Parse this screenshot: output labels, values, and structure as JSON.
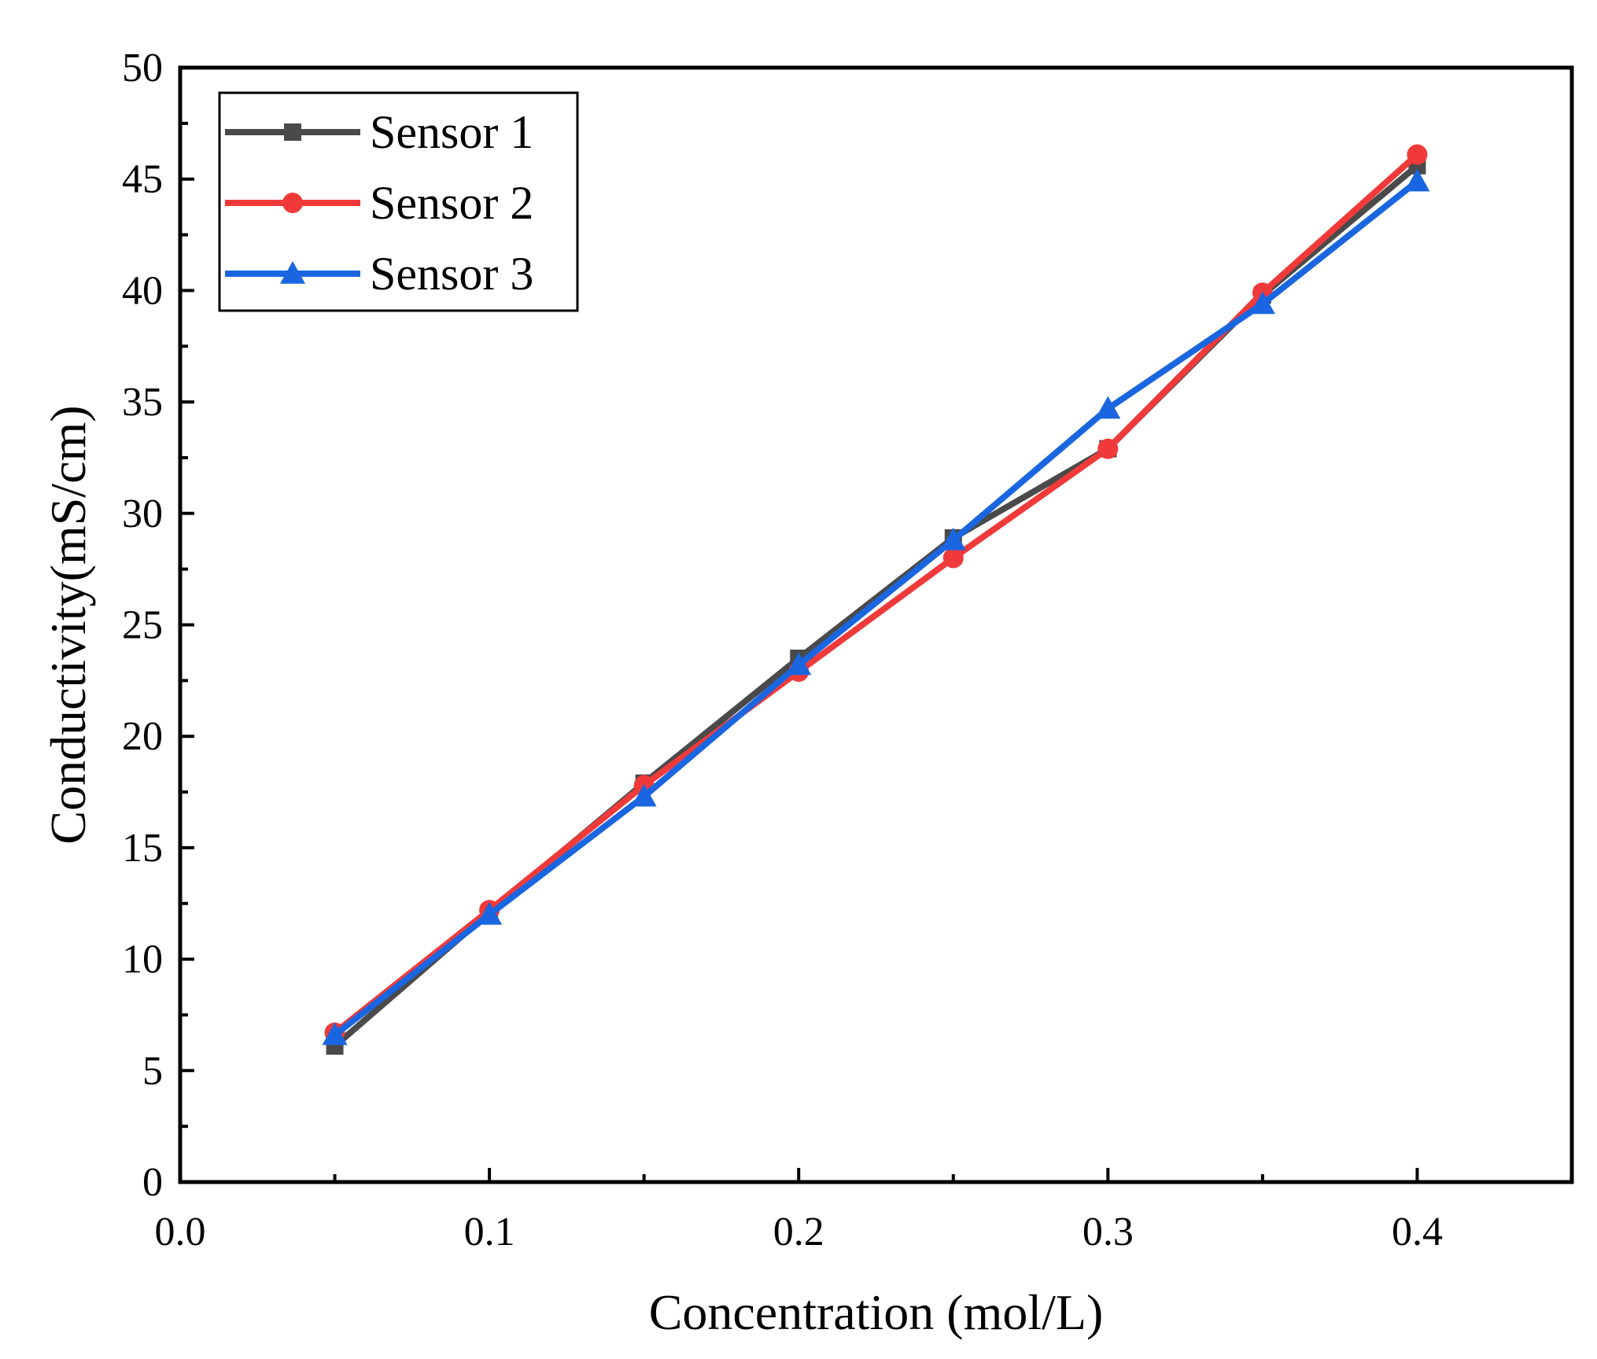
{
  "chart_data": {
    "type": "line",
    "title": "",
    "xlabel": "Concentration (mol/L)",
    "ylabel": "Conductivity(mS/cm)",
    "xlim": [
      0.0,
      0.45
    ],
    "ylim": [
      0,
      50
    ],
    "xticks": [
      0.0,
      0.1,
      0.2,
      0.3,
      0.4
    ],
    "xtick_labels": [
      "0.0",
      "0.1",
      "0.2",
      "0.3",
      "0.4"
    ],
    "yticks": [
      0,
      5,
      10,
      15,
      20,
      25,
      30,
      35,
      40,
      45,
      50
    ],
    "ytick_labels": [
      "0",
      "5",
      "10",
      "15",
      "20",
      "25",
      "30",
      "35",
      "40",
      "45",
      "50"
    ],
    "grid": false,
    "legend_position": "top-left",
    "x": [
      0.05,
      0.1,
      0.15,
      0.2,
      0.25,
      0.3,
      0.35,
      0.4
    ],
    "series": [
      {
        "name": "Sensor 1",
        "color": "#4a4a4a",
        "marker": "square",
        "values": [
          6.1,
          12.1,
          17.9,
          23.5,
          28.9,
          32.9,
          39.8,
          45.6
        ]
      },
      {
        "name": "Sensor 2",
        "color": "#f03a3a",
        "marker": "circle",
        "values": [
          6.7,
          12.2,
          17.8,
          22.9,
          28.0,
          32.9,
          39.9,
          46.1
        ]
      },
      {
        "name": "Sensor 3",
        "color": "#1a66e0",
        "marker": "triangle",
        "values": [
          6.6,
          12.0,
          17.3,
          23.2,
          28.8,
          34.7,
          39.4,
          44.9
        ]
      }
    ]
  }
}
